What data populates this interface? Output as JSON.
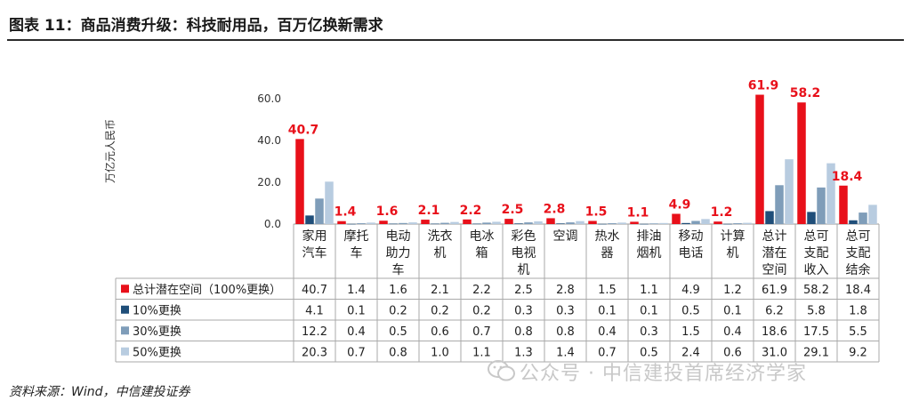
{
  "header": {
    "title": "图表 11：商品消费升级：科技耐用品，百万亿换新需求"
  },
  "footer": {
    "source": "资料来源：Wind，中信建投证券"
  },
  "watermark": {
    "text": "公众号 · 中信建投首席经济学家",
    "icon": "wechat-icon"
  },
  "chart_data": {
    "type": "bar",
    "ylabel": "万亿元人民币",
    "ylim": [
      0,
      60
    ],
    "yticks": [
      "0.0",
      "20.0",
      "40.0",
      "60.0"
    ],
    "categories": [
      [
        "家用",
        "汽车"
      ],
      [
        "摩托",
        "车"
      ],
      [
        "电动",
        "助力",
        "车"
      ],
      [
        "洗衣",
        "机"
      ],
      [
        "电冰",
        "箱"
      ],
      [
        "彩色",
        "电视",
        "机"
      ],
      [
        "空调"
      ],
      [
        "热水",
        "器"
      ],
      [
        "排油",
        "烟机"
      ],
      [
        "移动",
        "电话"
      ],
      [
        "计算",
        "机"
      ],
      [
        "总计",
        "潜在",
        "空间"
      ],
      [
        "总可",
        "支配",
        "收入"
      ],
      [
        "总可",
        "支配",
        "结余"
      ]
    ],
    "series": [
      {
        "name": "总计潜在空间（100%更换）",
        "color": "#e8101a",
        "values": [
          "40.7",
          "1.4",
          "1.6",
          "2.1",
          "2.2",
          "2.5",
          "2.8",
          "1.5",
          "1.1",
          "4.9",
          "1.2",
          "61.9",
          "58.2",
          "18.4"
        ]
      },
      {
        "name": "10%更换",
        "color": "#1f4e79",
        "values": [
          "4.1",
          "0.1",
          "0.2",
          "0.2",
          "0.2",
          "0.3",
          "0.3",
          "0.1",
          "0.1",
          "0.5",
          "0.1",
          "6.2",
          "5.8",
          "1.8"
        ]
      },
      {
        "name": "30%更换",
        "color": "#7f9db9",
        "values": [
          "12.2",
          "0.4",
          "0.5",
          "0.6",
          "0.7",
          "0.8",
          "0.8",
          "0.4",
          "0.3",
          "1.5",
          "0.4",
          "18.6",
          "17.5",
          "5.5"
        ]
      },
      {
        "name": "50%更换",
        "color": "#b8cce0",
        "values": [
          "20.3",
          "0.7",
          "0.8",
          "1.0",
          "1.1",
          "1.3",
          "1.4",
          "0.7",
          "0.5",
          "2.4",
          "0.6",
          "31.0",
          "29.1",
          "9.2"
        ]
      }
    ],
    "data_labels_series": 0,
    "data_label_color": "#e8101a"
  }
}
